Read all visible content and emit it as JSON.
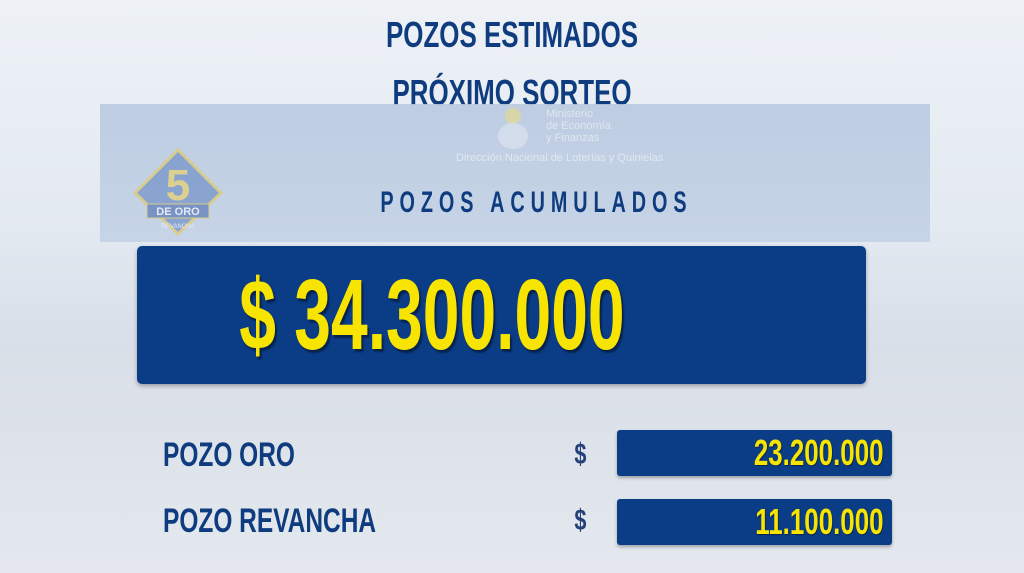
{
  "header": {
    "line1": "POZOS ESTIMADOS",
    "line2": "PRÓXIMO SORTEO"
  },
  "logo": {
    "number": "5",
    "text": "DE ORO",
    "sub": "REVANCHA"
  },
  "ministry": {
    "line1": "Ministerio",
    "line2": "de Economía",
    "line3": "y Finanzas",
    "line4": "Dirección Nacional de Loterías y Quinielas"
  },
  "section_title": "POZOS ACUMULADOS",
  "total": "$ 34.300.000",
  "rows": [
    {
      "label": "POZO ORO",
      "currency": "$",
      "value": "23.200.000"
    },
    {
      "label": "POZO REVANCHA",
      "currency": "$",
      "value": "11.100.000"
    }
  ],
  "colors": {
    "navy": "#0b3d86",
    "yellow": "#f7e400",
    "text": "#0e3c7e"
  }
}
